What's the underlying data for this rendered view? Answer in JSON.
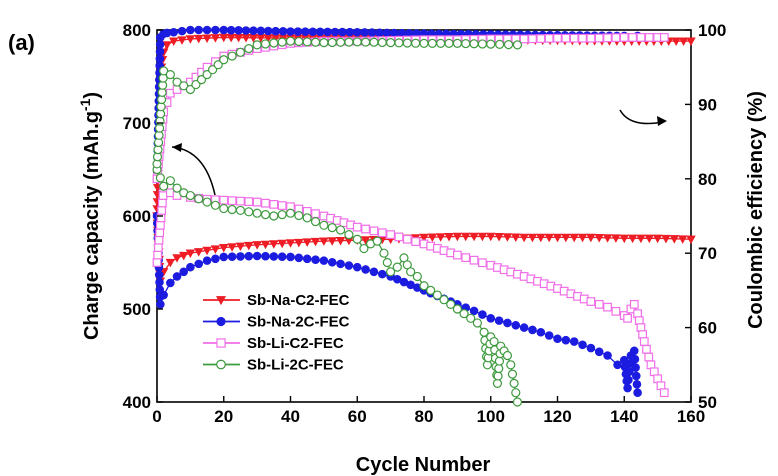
{
  "panel_label": "(a)",
  "chart_data": {
    "type": "scatter",
    "title": "",
    "xlabel": "Cycle Number",
    "ylabel_left_main": "Charge capacity (mAh.g",
    "ylabel_left_sup": "-1",
    "ylabel_left_close": ")",
    "ylabel_right": "Coulombic efficiency (%)",
    "xlim": [
      0,
      160
    ],
    "ylim_left": [
      400,
      800
    ],
    "ylim_right": [
      50,
      100
    ],
    "xticks": [
      0,
      20,
      40,
      60,
      80,
      100,
      120,
      140,
      160
    ],
    "yticks_left": [
      400,
      500,
      600,
      700,
      800
    ],
    "yticks_right": [
      50,
      60,
      70,
      80,
      90,
      100
    ],
    "grid": false,
    "legend_position": "bottom-left",
    "colors": {
      "Sb-Na-C2-FEC": "#ee1c24",
      "Sb-Na-2C-FEC": "#1c1ce0",
      "Sb-Li-C2-FEC": "#f06ee8",
      "Sb-Li-2C-FEC": "#3e9a3e"
    },
    "series": [
      {
        "name": "Sb-Na-C2-FEC",
        "axis": "left",
        "marker": "triangle-down",
        "x": [
          0,
          1,
          2,
          4,
          6,
          10,
          15,
          20,
          30,
          40,
          50,
          60,
          70,
          80,
          90,
          100,
          110,
          120,
          130,
          140,
          150,
          160
        ],
        "y": [
          600,
          530,
          540,
          550,
          555,
          560,
          563,
          566,
          569,
          571,
          573,
          574,
          575,
          577,
          578,
          578,
          577,
          577,
          577,
          576,
          576,
          575
        ]
      },
      {
        "name": "Sb-Na-2C-FEC",
        "axis": "left",
        "marker": "circle",
        "x": [
          0,
          1,
          2,
          4,
          6,
          10,
          15,
          20,
          30,
          40,
          50,
          60,
          70,
          80,
          90,
          95,
          100,
          105,
          110,
          115,
          120,
          125,
          130,
          135,
          138,
          140,
          141,
          142,
          143,
          144
        ],
        "y": [
          600,
          505,
          515,
          528,
          535,
          545,
          552,
          556,
          557,
          556,
          552,
          545,
          535,
          520,
          505,
          498,
          490,
          485,
          480,
          475,
          468,
          465,
          458,
          450,
          440,
          445,
          415,
          450,
          455,
          410
        ]
      },
      {
        "name": "Sb-Li-C2-FEC",
        "axis": "left",
        "marker": "square",
        "x": [
          0,
          2,
          4,
          6,
          10,
          15,
          20,
          30,
          40,
          50,
          60,
          70,
          80,
          90,
          100,
          110,
          120,
          130,
          135,
          140,
          141,
          142,
          143,
          144,
          145,
          146,
          148,
          150,
          152
        ],
        "y": [
          550,
          630,
          625,
          622,
          620,
          618,
          617,
          615,
          610,
          600,
          588,
          580,
          570,
          558,
          547,
          535,
          522,
          508,
          502,
          493,
          490,
          500,
          505,
          495,
          480,
          465,
          440,
          425,
          410
        ]
      },
      {
        "name": "Sb-Li-2C-FEC",
        "axis": "left",
        "marker": "circle-open",
        "x": [
          0,
          2,
          4,
          6,
          8,
          10,
          15,
          20,
          25,
          30,
          35,
          40,
          45,
          50,
          55,
          60,
          62,
          64,
          66,
          68,
          70,
          72,
          74,
          76,
          78,
          80,
          82,
          84,
          86,
          88,
          90,
          92,
          94,
          96,
          98,
          99,
          100,
          101,
          102,
          103,
          104,
          105,
          106,
          107,
          108
        ],
        "y": [
          650,
          632,
          638,
          630,
          625,
          622,
          615,
          608,
          606,
          603,
          600,
          603,
          598,
          590,
          585,
          575,
          565,
          570,
          573,
          560,
          540,
          545,
          555,
          540,
          535,
          525,
          520,
          515,
          510,
          505,
          500,
          495,
          490,
          485,
          475,
          440,
          470,
          465,
          420,
          460,
          455,
          450,
          440,
          420,
          400
        ]
      },
      {
        "name": "Sb-Na-C2-FEC (CE)",
        "axis": "right",
        "marker": "triangle-down",
        "x": [
          0,
          1,
          2,
          3,
          5,
          10,
          20,
          40,
          60,
          80,
          100,
          120,
          140,
          160
        ],
        "y": [
          75,
          94,
          97,
          98,
          98.5,
          98.8,
          99,
          98.9,
          98.9,
          98.8,
          98.7,
          98.6,
          98.5,
          98.5
        ]
      },
      {
        "name": "Sb-Na-2C-FEC (CE)",
        "axis": "right",
        "marker": "circle",
        "x": [
          0,
          1,
          2,
          3,
          5,
          10,
          20,
          40,
          60,
          80,
          100,
          120,
          140,
          144
        ],
        "y": [
          80,
          99,
          99.5,
          99.6,
          99.7,
          100,
          100,
          99.8,
          99.7,
          99.5,
          99.4,
          99.3,
          99.2,
          99.2
        ]
      },
      {
        "name": "Sb-Li-C2-FEC (CE)",
        "axis": "right",
        "marker": "square",
        "x": [
          0,
          2,
          4,
          6,
          10,
          15,
          20,
          30,
          40,
          50,
          60,
          70,
          80,
          90,
          100,
          110,
          120,
          130,
          140,
          150,
          152
        ],
        "y": [
          80,
          89,
          91.5,
          92,
          93,
          95,
          96.5,
          97.5,
          98.2,
          98.5,
          98.5,
          98.6,
          98.7,
          98.7,
          98.8,
          98.8,
          98.9,
          98.9,
          99,
          99,
          99
        ]
      },
      {
        "name": "Sb-Li-2C-FEC (CE)",
        "axis": "right",
        "marker": "circle-open",
        "x": [
          0,
          2,
          4,
          6,
          10,
          15,
          20,
          25,
          30,
          40,
          50,
          60,
          70,
          80,
          90,
          100,
          108
        ],
        "y": [
          82,
          94.5,
          94,
          93,
          92,
          94,
          96,
          97,
          98,
          98.5,
          98.3,
          98.4,
          98.3,
          98.2,
          98.2,
          98.1,
          98
        ]
      }
    ]
  }
}
